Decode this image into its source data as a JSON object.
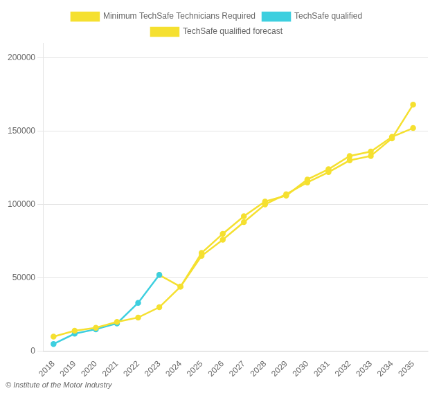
{
  "chart_data": {
    "type": "line",
    "x": [
      2018,
      2019,
      2020,
      2021,
      2022,
      2023,
      2024,
      2025,
      2026,
      2027,
      2028,
      2029,
      2030,
      2031,
      2032,
      2033,
      2034,
      2035
    ],
    "series": [
      {
        "name": "Minimum TechSafe Technicians Required",
        "color": "#f5e030",
        "marker": "circle",
        "line_style": "solid",
        "values": [
          10000,
          14000,
          16000,
          20000,
          23000,
          30000,
          44000,
          65000,
          76000,
          88000,
          100000,
          107000,
          115000,
          122000,
          130000,
          133000,
          145000,
          168000
        ]
      },
      {
        "name": "TechSafe qualified",
        "color": "#3dcfdf",
        "marker": "circle",
        "line_style": "solid",
        "values": [
          5000,
          12000,
          15000,
          19000,
          33000,
          52000,
          null,
          null,
          null,
          null,
          null,
          null,
          null,
          null,
          null,
          null,
          null,
          null
        ]
      },
      {
        "name": "TechSafe qualified forecast",
        "color": "#f5e030",
        "marker": "circle",
        "line_style": "solid",
        "values": [
          null,
          null,
          null,
          null,
          null,
          52000,
          44000,
          67000,
          80000,
          92000,
          102000,
          106000,
          117000,
          124000,
          133000,
          136000,
          146000,
          152000
        ]
      }
    ],
    "xlim": [
      2017.5,
      2035.7
    ],
    "xticks": [
      2018,
      2019,
      2020,
      2021,
      2022,
      2023,
      2024,
      2025,
      2026,
      2027,
      2028,
      2029,
      2030,
      2031,
      2032,
      2033,
      2034,
      2035
    ],
    "ylim": [
      0,
      210000
    ],
    "yticks": [
      0,
      50000,
      100000,
      150000,
      200000
    ],
    "grid": "y",
    "legend": "top",
    "annotations": [
      "© Institute of the Motor Industry"
    ]
  }
}
